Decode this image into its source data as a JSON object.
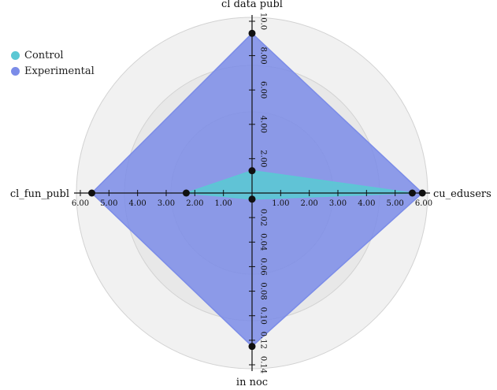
{
  "chart_data": {
    "type": "radar",
    "axes": [
      {
        "name": "cl data publ",
        "direction": "up",
        "ticks": [
          "2.00",
          "4.00",
          "6.00",
          "8.00",
          "10.0"
        ],
        "max": 10
      },
      {
        "name": "cu_edusers",
        "direction": "right",
        "ticks": [
          "1.00",
          "2.00",
          "3.00",
          "4.00",
          "5.00",
          "6.00"
        ],
        "max": 6
      },
      {
        "name": "in noc",
        "direction": "down",
        "ticks": [
          "0.02",
          "0.04",
          "0.06",
          "0.08",
          "0.10",
          "0.12",
          "0.14"
        ],
        "max": 0.14
      },
      {
        "name": "cl_fun_publ",
        "direction": "left",
        "ticks": [
          "1.00",
          "2.00",
          "3.00",
          "4.00",
          "5.00",
          "6.00"
        ],
        "max": 6
      }
    ],
    "series": [
      {
        "name": "Control",
        "color": "#5bc8d4",
        "values": [
          1.3,
          5.6,
          0.005,
          2.3
        ]
      },
      {
        "name": "Experimental",
        "color": "#7b8ce8",
        "values": [
          9.3,
          5.95,
          0.125,
          5.6
        ]
      }
    ],
    "legend_position": "top-left"
  }
}
